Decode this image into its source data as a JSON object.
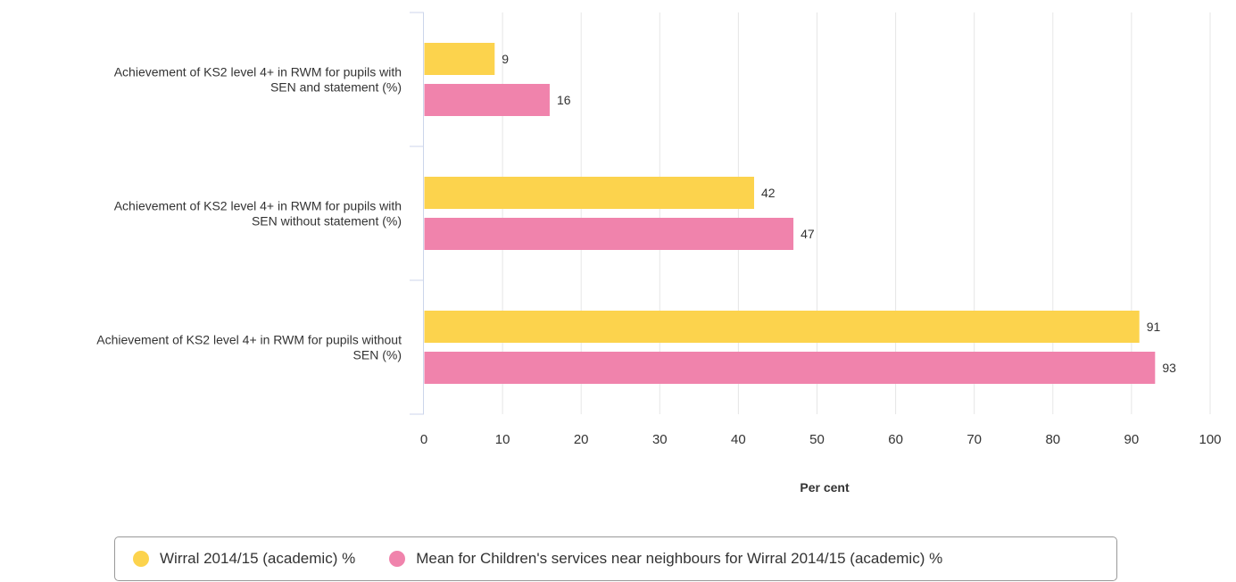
{
  "chart_data": {
    "type": "bar",
    "orientation": "horizontal",
    "categories": [
      [
        "Achievement of KS2 level 4+ in RWM for pupils with",
        "SEN and statement (%)"
      ],
      [
        "Achievement of KS2 level 4+ in RWM for pupils with",
        "SEN without statement (%)"
      ],
      [
        "Achievement of KS2 level 4+ in RWM for pupils without",
        "SEN (%)"
      ]
    ],
    "series": [
      {
        "name": "Wirral 2014/15 (academic) %",
        "color": "#FCD34D",
        "values": [
          9,
          42,
          91
        ]
      },
      {
        "name": "Mean for Children's services near neighbours for Wirral 2014/15 (academic) %",
        "color": "#F083AC",
        "values": [
          16,
          47,
          93
        ]
      }
    ],
    "xlabel": "Per cent",
    "ylabel": "",
    "xlim": [
      0,
      100
    ],
    "xticks": [
      0,
      10,
      20,
      30,
      40,
      50,
      60,
      70,
      80,
      90,
      100
    ],
    "grid": true,
    "legend_position": "bottom-center"
  }
}
